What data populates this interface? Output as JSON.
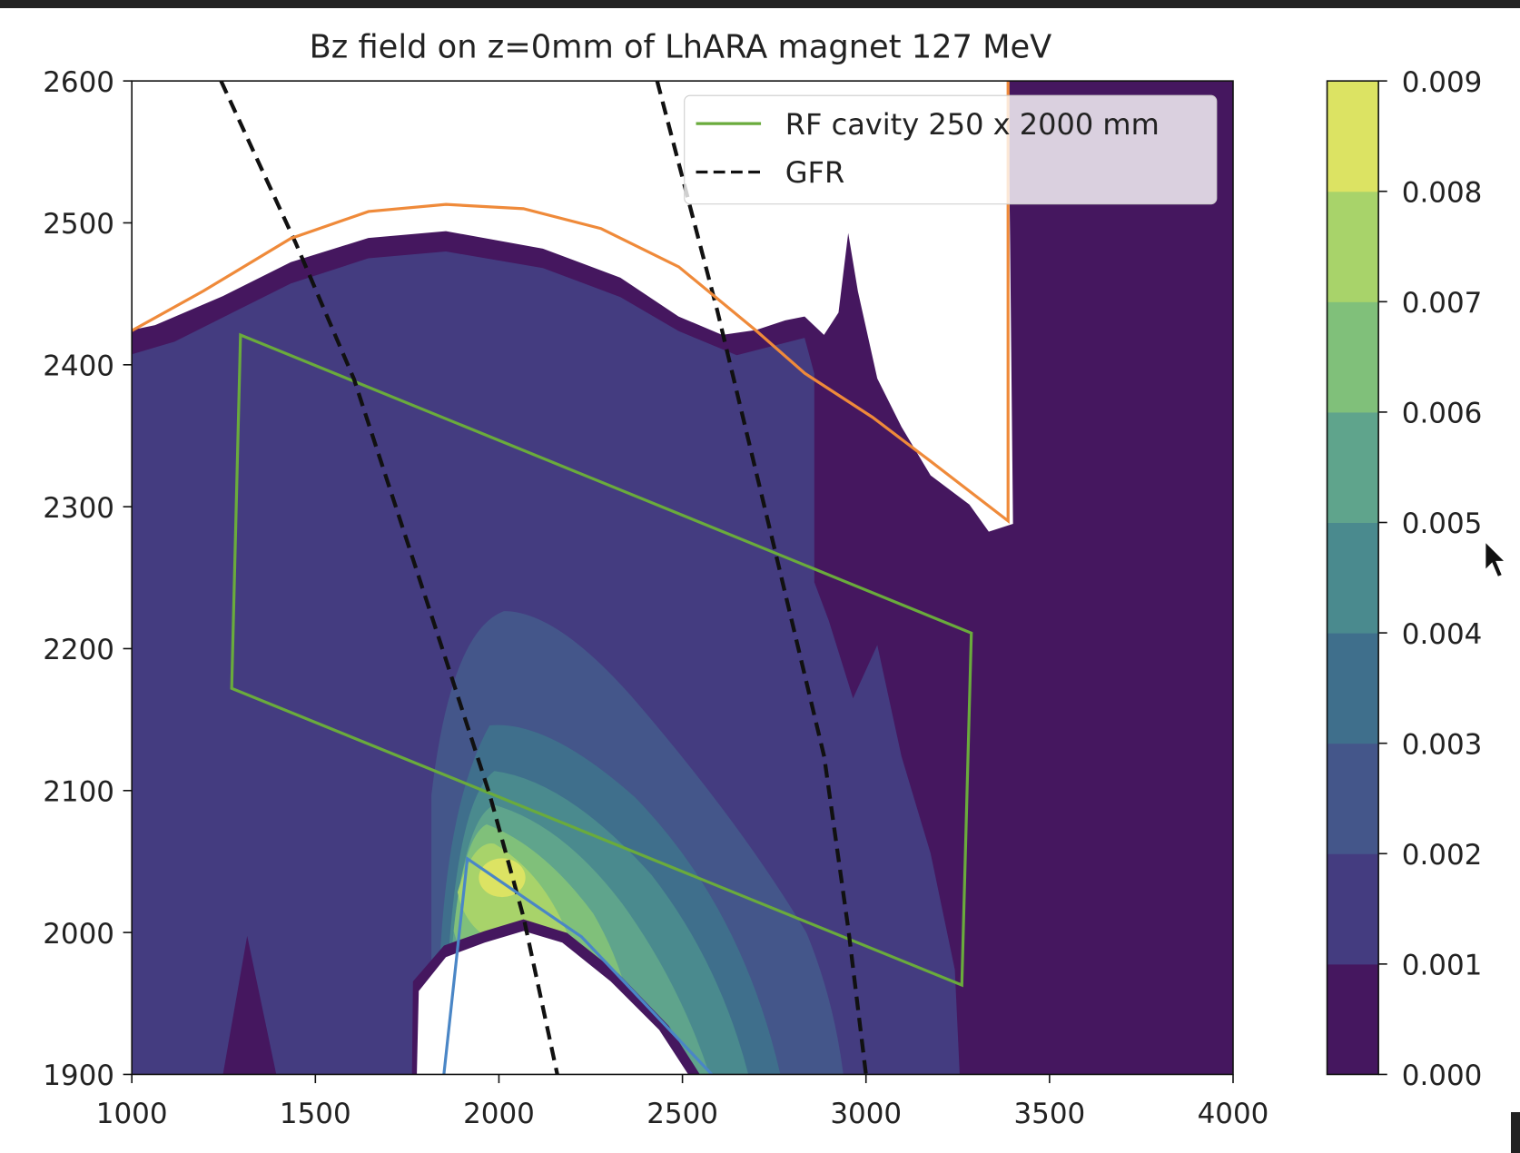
{
  "chart_data": {
    "type": "contour",
    "title": "Bz field on z=0mm of LhARA magnet 127 MeV",
    "xlabel": "",
    "ylabel": "",
    "xlim": [
      1000,
      4000
    ],
    "ylim": [
      1900,
      2600
    ],
    "xticks": [
      1000,
      1500,
      2000,
      2500,
      3000,
      3500,
      4000
    ],
    "yticks": [
      1900,
      2000,
      2100,
      2200,
      2300,
      2400,
      2500,
      2600
    ],
    "colorbar": {
      "levels": [
        0.0,
        0.001,
        0.002,
        0.003,
        0.004,
        0.005,
        0.006,
        0.007,
        0.008,
        0.009
      ],
      "tick_labels": [
        "0.000",
        "0.001",
        "0.002",
        "0.003",
        "0.004",
        "0.005",
        "0.006",
        "0.007",
        "0.008",
        "0.009"
      ],
      "colors": [
        "#45175f",
        "#443c80",
        "#44568a",
        "#3f6f8c",
        "#4a8a8e",
        "#5fa48c",
        "#80c07a",
        "#a8d36a",
        "#dce363"
      ]
    },
    "legend": {
      "placement": "top-right",
      "entries": [
        {
          "label": "RF cavity 250 x 2000 mm",
          "color": "#6aab3c",
          "style": "solid"
        },
        {
          "label": "GFR",
          "color": "#111111",
          "style": "dashed"
        }
      ]
    },
    "series": [
      {
        "name": "RF cavity 250 x 2000 mm",
        "color": "#6aab3c",
        "closed": true,
        "x": [
          1296,
          3287,
          3261,
          1272
        ],
        "y": [
          2421,
          2211,
          1963,
          2172
        ]
      },
      {
        "name": "GFR inner",
        "color": "#111111",
        "dashed": true,
        "x": [
          1243,
          1446,
          1605,
          1856,
          1975,
          2067,
          2159
        ],
        "y": [
          2600,
          2486,
          2390,
          2192,
          2097,
          2011,
          1900
        ]
      },
      {
        "name": "GFR outer",
        "color": "#111111",
        "dashed": true,
        "x": [
          2431,
          2595,
          2754,
          2886,
          2952,
          3000
        ],
        "y": [
          2600,
          2438,
          2267,
          2124,
          2002,
          1900
        ]
      },
      {
        "name": "magnet outer boundary",
        "color": "#ef8a3a",
        "x": [
          1000,
          1195,
          1433,
          1645,
          1856,
          2067,
          2278,
          2490,
          2701,
          2833,
          3018,
          3176,
          3387,
          3387
        ],
        "y": [
          2424,
          2452,
          2489,
          2508,
          2513,
          2510,
          2496,
          2469,
          2424,
          2394,
          2363,
          2332,
          2290,
          2600
        ]
      },
      {
        "name": "magnet inner boundary",
        "color": "#4a86c6",
        "x": [
          1850,
          1914,
          2225,
          2580
        ],
        "y": [
          1900,
          2052,
          1997,
          1900
        ]
      }
    ]
  }
}
